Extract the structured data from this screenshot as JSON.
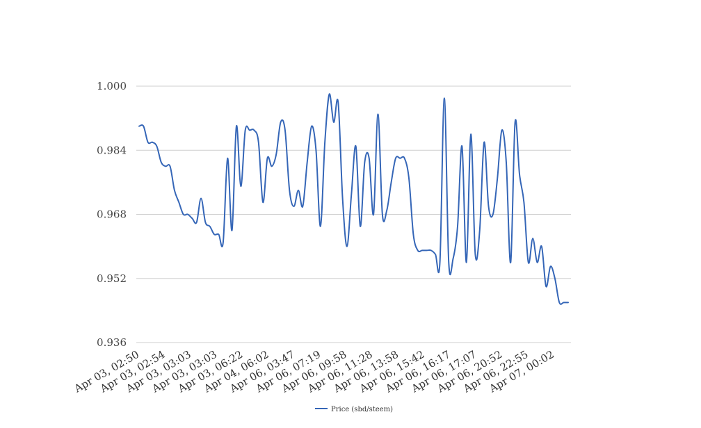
{
  "chart_data": {
    "type": "line",
    "title": "",
    "xlabel": "",
    "ylabel": "",
    "ylim": [
      0.936,
      1.0
    ],
    "yticks": [
      "1.000",
      "0.984",
      "0.968",
      "0.952",
      "0.936"
    ],
    "grid": true,
    "legend_position": "bottom-center",
    "x_tick_labels": [
      "Apr 03, 02:50",
      "Apr 03, 02:54",
      "Apr 03, 03:03",
      "Apr 03, 03:03",
      "Apr 03, 06:22",
      "Apr 04, 06:02",
      "Apr 06, 03:47",
      "Apr 06, 07:19",
      "Apr 06, 09:58",
      "Apr 06, 11:28",
      "Apr 06, 13:58",
      "Apr 06, 15:42",
      "Apr 06, 16:17",
      "Apr 06, 17:07",
      "Apr 06, 20:52",
      "Apr 06, 22:55",
      "Apr 07, 00:02"
    ],
    "series": [
      {
        "name": "Price (sbd/steem)",
        "color": "#3566b7",
        "values": [
          0.99,
          0.99,
          0.986,
          0.986,
          0.985,
          0.981,
          0.98,
          0.98,
          0.974,
          0.971,
          0.968,
          0.968,
          0.967,
          0.966,
          0.972,
          0.966,
          0.965,
          0.963,
          0.963,
          0.961,
          0.982,
          0.964,
          0.99,
          0.975,
          0.989,
          0.989,
          0.989,
          0.986,
          0.971,
          0.982,
          0.98,
          0.983,
          0.991,
          0.989,
          0.974,
          0.97,
          0.974,
          0.97,
          0.981,
          0.99,
          0.984,
          0.965,
          0.986,
          0.998,
          0.991,
          0.996,
          0.972,
          0.96,
          0.973,
          0.985,
          0.965,
          0.981,
          0.982,
          0.968,
          0.993,
          0.968,
          0.969,
          0.976,
          0.982,
          0.982,
          0.982,
          0.977,
          0.963,
          0.959,
          0.959,
          0.959,
          0.959,
          0.958,
          0.956,
          0.997,
          0.956,
          0.957,
          0.965,
          0.985,
          0.956,
          0.988,
          0.958,
          0.964,
          0.986,
          0.97,
          0.968,
          0.977,
          0.989,
          0.981,
          0.956,
          0.991,
          0.978,
          0.971,
          0.956,
          0.962,
          0.956,
          0.96,
          0.95,
          0.955,
          0.952,
          0.946,
          0.946,
          0.946
        ]
      }
    ]
  }
}
